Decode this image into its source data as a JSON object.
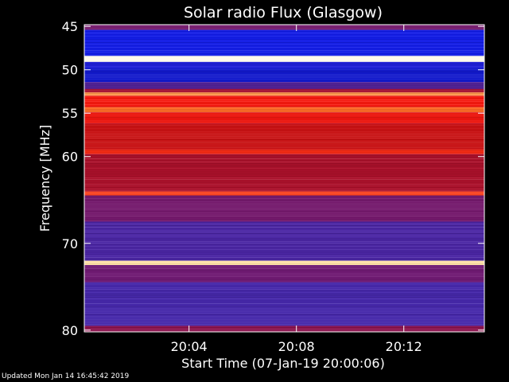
{
  "chart_data": {
    "type": "heatmap",
    "title": "Solar radio Flux (Glasgow)",
    "ylabel": "Frequency [MHz]",
    "xlabel": "Start Time (07-Jan-19 20:00:06)",
    "x_tick_labels": [
      "20:04",
      "20:08",
      "20:12"
    ],
    "x_ticks_min": [
      4,
      8,
      12
    ],
    "x_range_min": [
      0.1,
      15.0
    ],
    "y_tick_labels": [
      "45",
      "50",
      "55",
      "60",
      "70",
      "80"
    ],
    "y_ticks": [
      45,
      50,
      55,
      60,
      70,
      80
    ],
    "y_range": [
      44.8,
      80.2
    ],
    "bands": [
      {
        "from": 44.8,
        "to": 45.4,
        "level": 0.35
      },
      {
        "from": 45.4,
        "to": 48.4,
        "level": 0.12
      },
      {
        "from": 48.4,
        "to": 49.1,
        "level": 1.0
      },
      {
        "from": 49.1,
        "to": 49.8,
        "level": 0.15
      },
      {
        "from": 49.8,
        "to": 51.4,
        "level": 0.08
      },
      {
        "from": 51.4,
        "to": 52.2,
        "level": 0.28
      },
      {
        "from": 52.2,
        "to": 52.6,
        "level": 0.45
      },
      {
        "from": 52.6,
        "to": 53.0,
        "level": 0.85
      },
      {
        "from": 53.0,
        "to": 54.3,
        "level": 0.62
      },
      {
        "from": 54.3,
        "to": 54.9,
        "level": 0.8
      },
      {
        "from": 54.9,
        "to": 56.2,
        "level": 0.6
      },
      {
        "from": 56.2,
        "to": 59.2,
        "level": 0.52
      },
      {
        "from": 59.2,
        "to": 59.7,
        "level": 0.66
      },
      {
        "from": 59.7,
        "to": 64.0,
        "level": 0.46
      },
      {
        "from": 64.0,
        "to": 64.5,
        "level": 0.7
      },
      {
        "from": 64.5,
        "to": 67.5,
        "level": 0.35
      },
      {
        "from": 67.5,
        "to": 72.0,
        "level": 0.26
      },
      {
        "from": 72.0,
        "to": 72.5,
        "level": 0.95
      },
      {
        "from": 72.5,
        "to": 74.5,
        "level": 0.34
      },
      {
        "from": 74.5,
        "to": 79.5,
        "level": 0.25
      },
      {
        "from": 79.5,
        "to": 80.2,
        "level": 0.4
      }
    ]
  },
  "footer": "Updated Mon Jan 14 16:45:42 2019"
}
